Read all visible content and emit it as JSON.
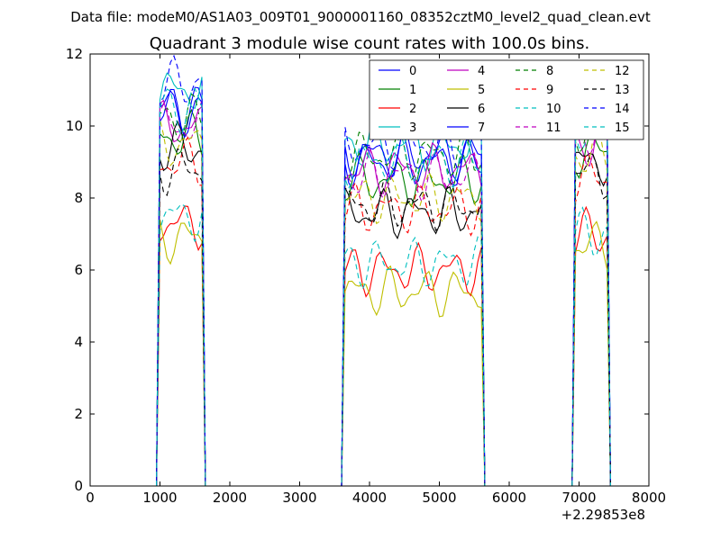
{
  "suptitle": "Data file: modeM0/AS1A03_009T01_9000001160_08352cztM0_level2_quad_clean.evt",
  "chart_data": {
    "type": "line",
    "title": "Quadrant 3 module wise count rates with 100.0s bins.",
    "xlabel": "",
    "ylabel": "",
    "xlim": [
      0,
      8000
    ],
    "ylim": [
      0,
      12
    ],
    "x_offset_label": "+2.29853e8",
    "xticks": [
      0,
      1000,
      2000,
      3000,
      4000,
      5000,
      6000,
      7000,
      8000
    ],
    "yticks": [
      0,
      2,
      4,
      6,
      8,
      10,
      12
    ],
    "grid": false,
    "legend": {
      "placement": "top-right",
      "columns": 4
    },
    "gap_value": 0,
    "segments": [
      {
        "x_start": 1000,
        "x_end": 1600
      },
      {
        "x_start": 3640,
        "x_end": 5640
      },
      {
        "x_start": 6940,
        "x_end": 7440
      }
    ],
    "series": [
      {
        "name": "0",
        "color": "#0000ff",
        "dash": "solid",
        "levels": [
          10.5,
          9.0,
          10.5
        ]
      },
      {
        "name": "1",
        "color": "#008000",
        "dash": "solid",
        "levels": [
          9.7,
          8.5,
          9.3
        ]
      },
      {
        "name": "2",
        "color": "#ff0000",
        "dash": "solid",
        "levels": [
          7.3,
          6.0,
          7.0
        ]
      },
      {
        "name": "3",
        "color": "#00bfbf",
        "dash": "solid",
        "levels": [
          11.0,
          9.5,
          10.5
        ]
      },
      {
        "name": "4",
        "color": "#bf00bf",
        "dash": "solid",
        "levels": [
          10.0,
          8.8,
          9.5
        ]
      },
      {
        "name": "5",
        "color": "#bfbf00",
        "dash": "solid",
        "levels": [
          6.9,
          5.4,
          6.7
        ]
      },
      {
        "name": "6",
        "color": "#000000",
        "dash": "solid",
        "levels": [
          9.4,
          7.6,
          9.0
        ]
      },
      {
        "name": "7",
        "color": "#0000ff",
        "dash": "solid",
        "levels": [
          10.4,
          9.2,
          10.2
        ]
      },
      {
        "name": "8",
        "color": "#008000",
        "dash": "dashed",
        "levels": [
          10.2,
          9.2,
          9.9
        ]
      },
      {
        "name": "9",
        "color": "#ff0000",
        "dash": "dashed",
        "levels": [
          9.0,
          7.7,
          8.6
        ]
      },
      {
        "name": "10",
        "color": "#00bfbf",
        "dash": "dashed",
        "levels": [
          7.5,
          6.2,
          7.0
        ]
      },
      {
        "name": "11",
        "color": "#bf00bf",
        "dash": "dashed",
        "levels": [
          10.0,
          8.6,
          9.9
        ]
      },
      {
        "name": "12",
        "color": "#bfbf00",
        "dash": "dashed",
        "levels": [
          9.5,
          8.0,
          9.2
        ]
      },
      {
        "name": "13",
        "color": "#000000",
        "dash": "dashed",
        "levels": [
          8.8,
          7.8,
          8.7
        ]
      },
      {
        "name": "14",
        "color": "#0000ff",
        "dash": "dashed",
        "levels": [
          11.2,
          9.5,
          10.6
        ]
      },
      {
        "name": "15",
        "color": "#00bfbf",
        "dash": "dashed",
        "levels": [
          10.5,
          9.0,
          9.8
        ]
      }
    ]
  }
}
